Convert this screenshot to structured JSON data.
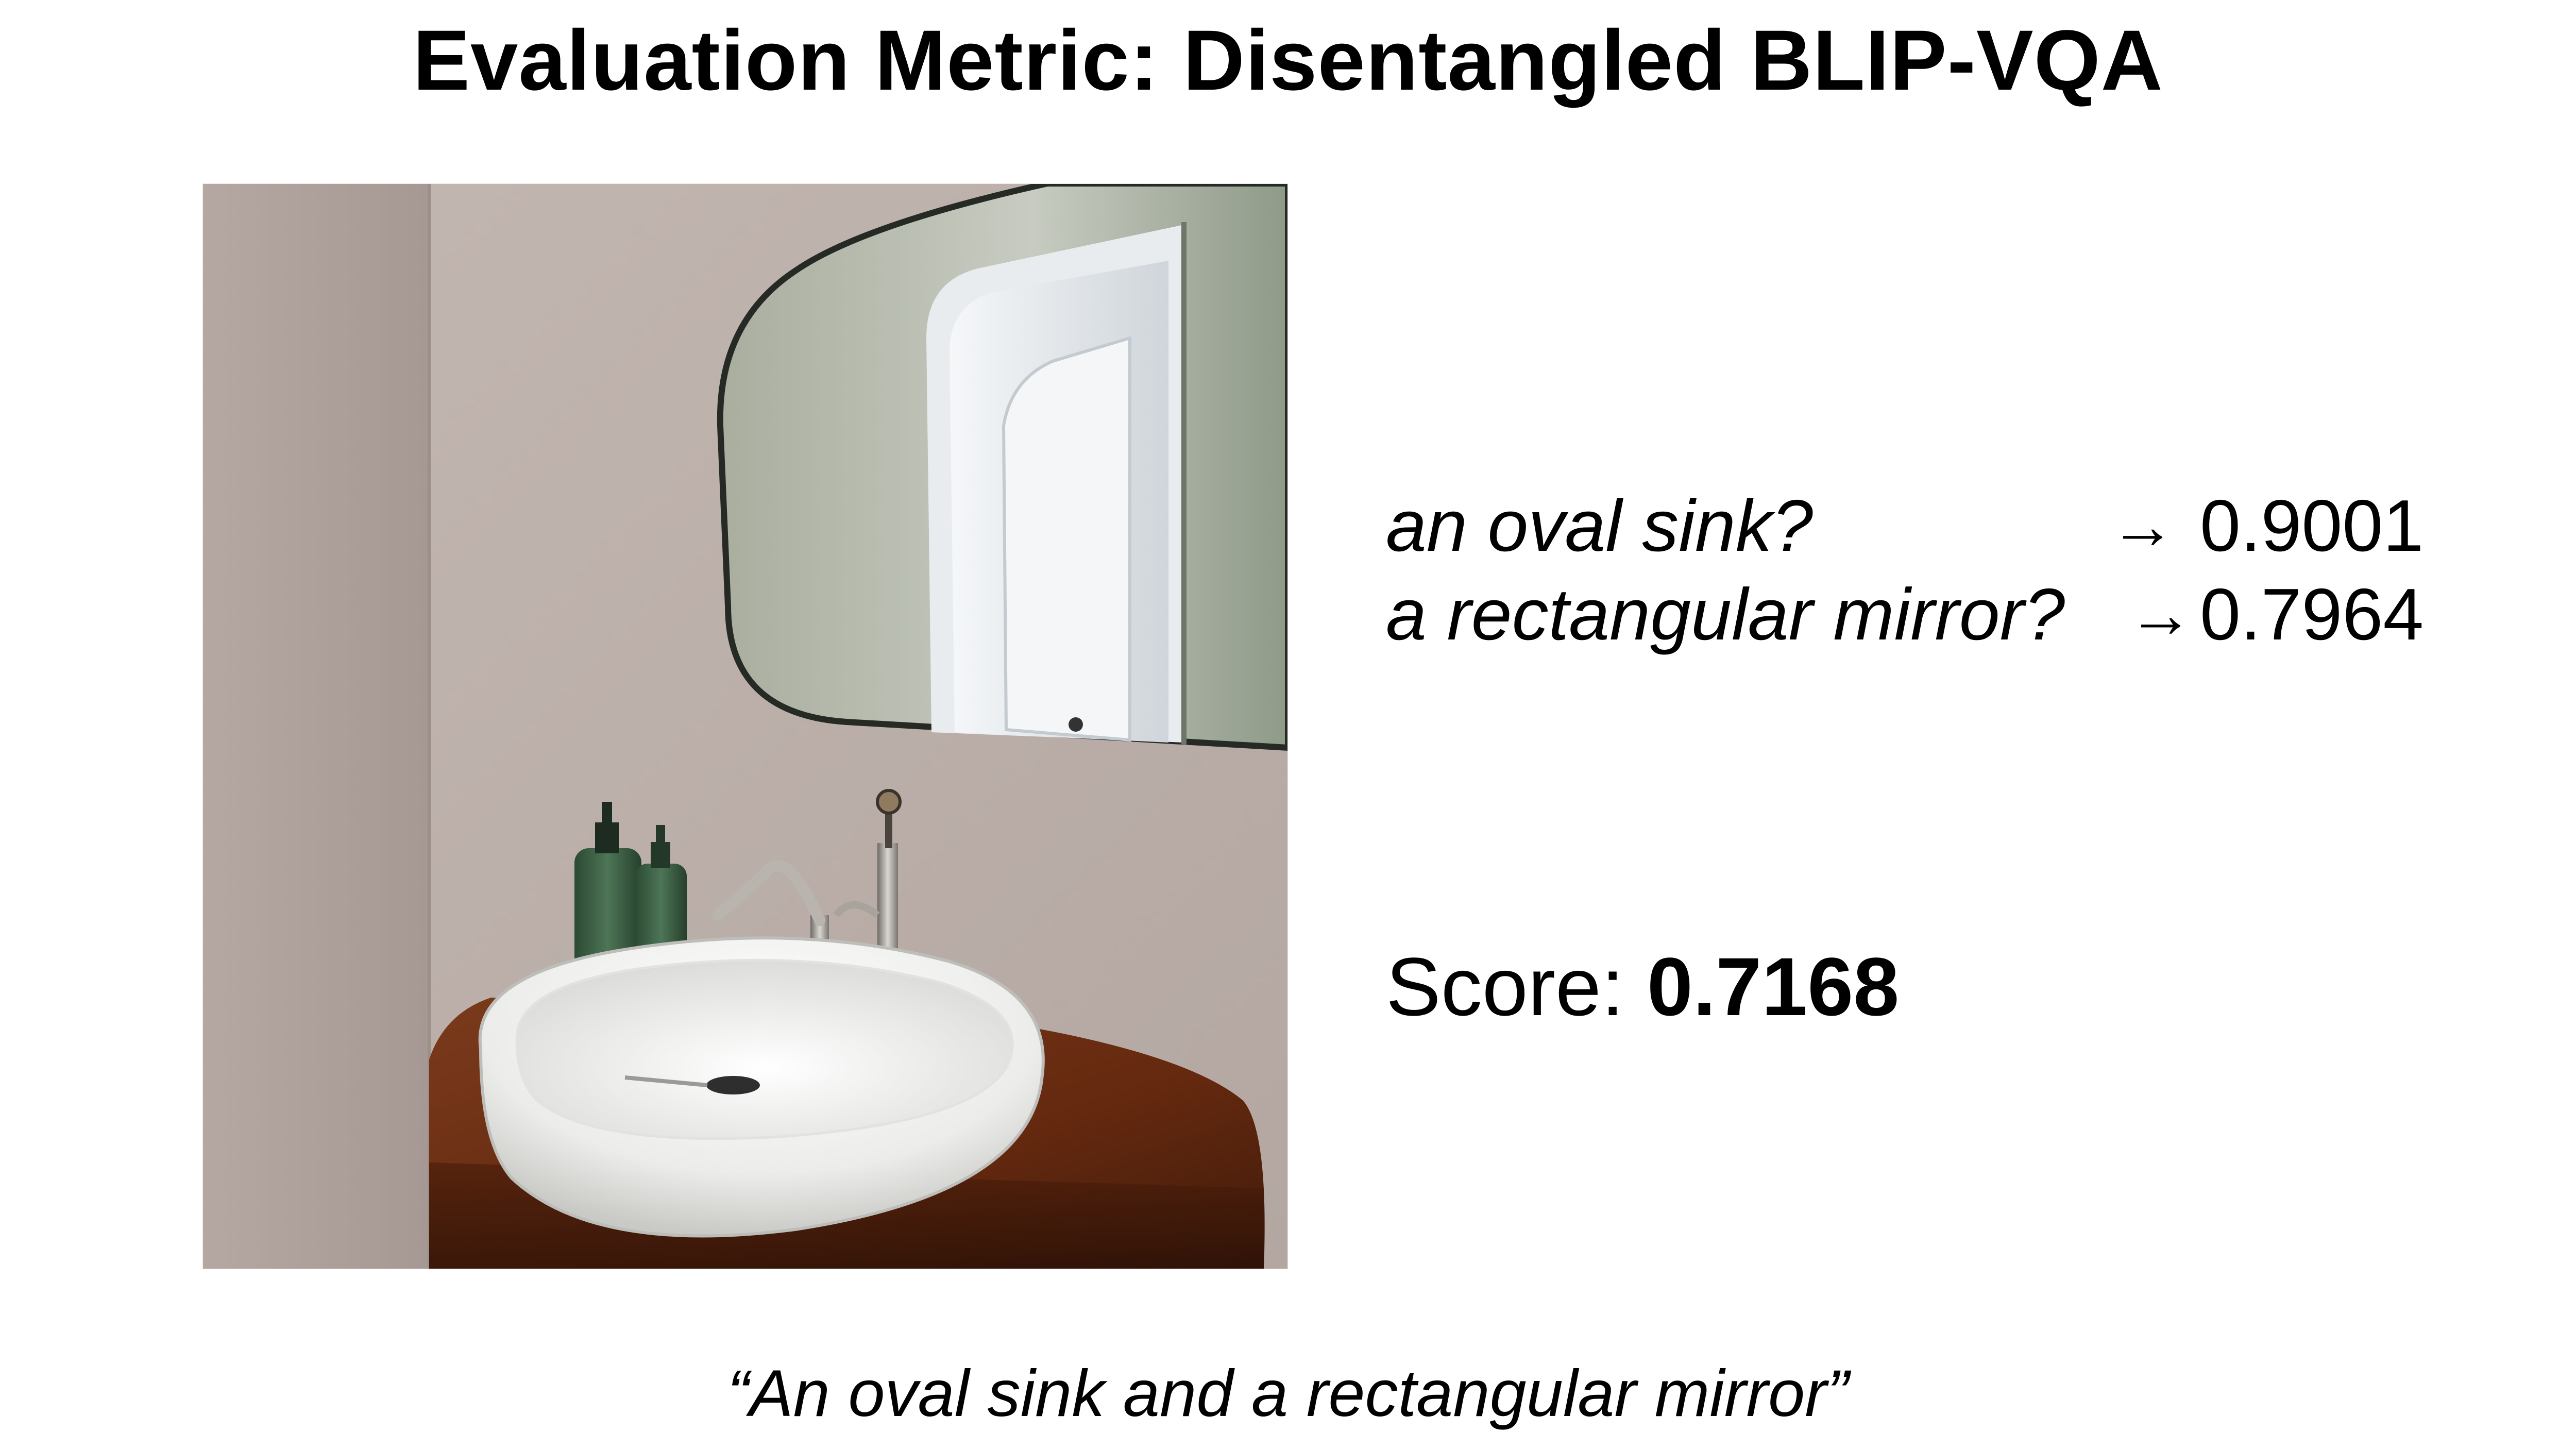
{
  "slide": {
    "title": "Evaluation Metric: Disentangled BLIP-VQA",
    "questions": [
      {
        "question": "an oval sink?",
        "arrow": "→",
        "answer": "0.9001"
      },
      {
        "question": "a rectangular mirror?",
        "arrow": "→",
        "answer": "0.7964"
      }
    ],
    "score_label": "Score:",
    "score_value": "0.7168",
    "caption": "“An oval sink and a rectangular mirror”"
  },
  "photo": {
    "subject": "bathroom corner with an oval white vessel sink on a wooden vanity, a faucet, two green soap bottles, and a rounded wall mirror reflecting a white door",
    "colors": {
      "wall_left": "#b2a49f",
      "wall_back": "#bdb0aa",
      "mirror": "#b9bdb2",
      "mirror_frame": "#2a2d28",
      "door": "#e4e8ec",
      "vanity": "#6e2f16",
      "sink": "#f3f3f1",
      "bottle": "#3c5e41"
    }
  }
}
